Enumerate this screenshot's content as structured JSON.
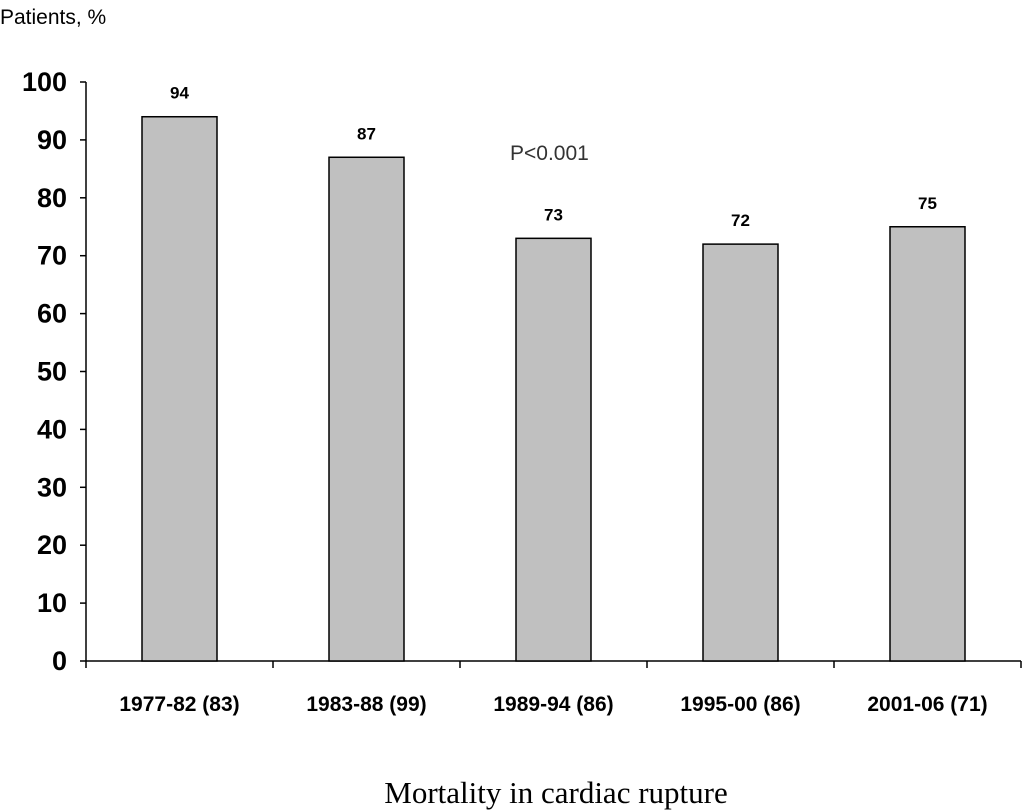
{
  "chart_data": {
    "type": "bar",
    "title": "",
    "ylabel": "Patients, %",
    "xlabel": "Mortality in cardiac rupture",
    "categories": [
      "1977-82 (83)",
      "1983-88 (99)",
      "1989-94 (86)",
      "1995-00 (86)",
      "2001-06 (71)"
    ],
    "values": [
      94,
      87,
      73,
      72,
      75
    ],
    "data_labels": [
      "94",
      "87",
      "73",
      "72",
      "75"
    ],
    "ylim": [
      0,
      100
    ],
    "yticks": [
      0,
      10,
      20,
      30,
      40,
      50,
      60,
      70,
      80,
      90,
      100
    ],
    "annotation": "P<0.001",
    "grid": false,
    "legend": "none",
    "bar_color": "#c0c0c0",
    "bar_edge_color": "#000000"
  }
}
